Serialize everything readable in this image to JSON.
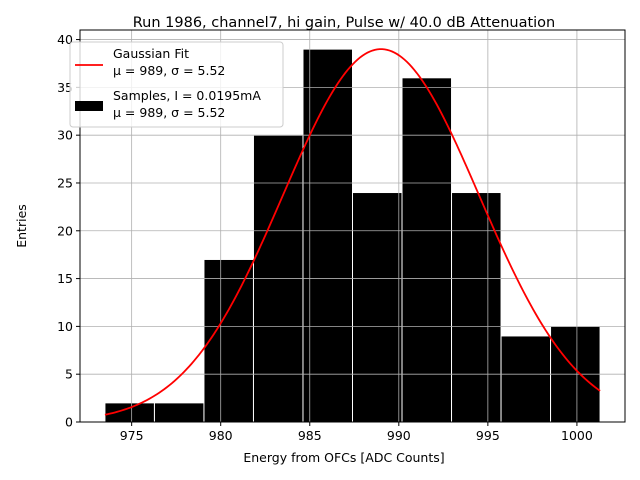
{
  "chart_data": {
    "type": "bar",
    "title": "Run 1986, channel7, hi gain, Pulse w/ 40.0 dB Attenuation",
    "xlabel": "Energy from OFCs [ADC Counts]",
    "ylabel": "Entries",
    "xlim": [
      972.1,
      1002.7
    ],
    "ylim": [
      0,
      41
    ],
    "xticks": [
      975,
      980,
      985,
      990,
      995,
      1000
    ],
    "yticks": [
      0,
      5,
      10,
      15,
      20,
      25,
      30,
      35,
      40
    ],
    "grid": true,
    "legend_position": "upper-left",
    "histogram": {
      "name": "Samples, I = 0.0195mA",
      "stats": "μ = 989, σ = 5.52",
      "color": "#000000",
      "edge_color": "#ffffff",
      "bin_edges": [
        973.5,
        976.28,
        979.06,
        981.84,
        984.62,
        987.4,
        990.18,
        992.96,
        995.74,
        998.52,
        1001.3
      ],
      "counts": [
        2,
        2,
        17,
        30,
        39,
        24,
        36,
        24,
        9,
        10
      ]
    },
    "fit": {
      "name": "Gaussian Fit",
      "stats": "μ = 989, σ = 5.52",
      "color": "#ff0000",
      "type": "gaussian",
      "amplitude": 39,
      "mu": 989,
      "sigma": 5.52,
      "x_range": [
        973.5,
        1001.3
      ]
    }
  }
}
